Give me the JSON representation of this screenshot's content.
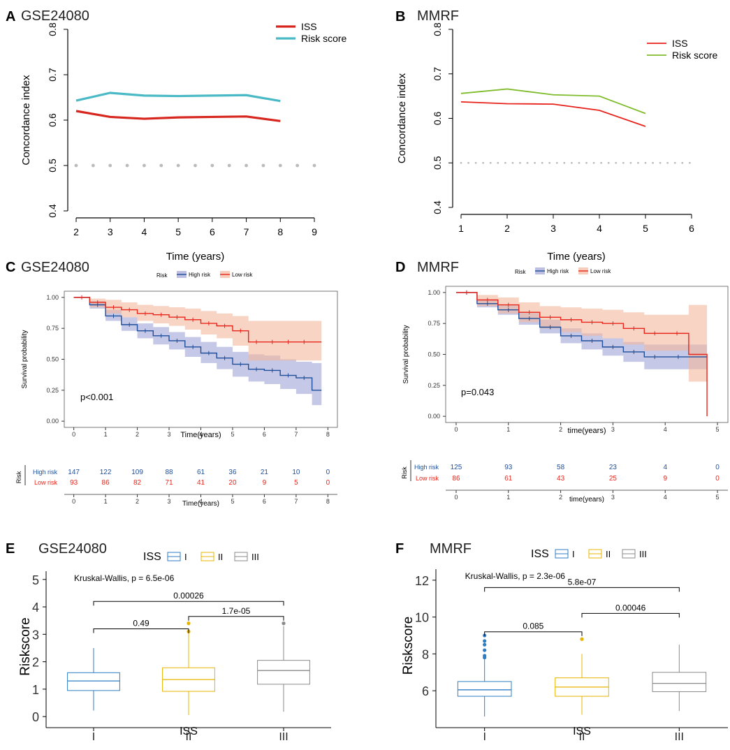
{
  "colors": {
    "iss_a": "#d7261e",
    "risk_a": "#4ab9c6",
    "iss_b": "#e8211b",
    "risk_b": "#7fbc2b",
    "high": "#1f4e9a",
    "low": "#e8261b",
    "high_band": "#9fa3d6",
    "low_band": "#f4b79c",
    "box_I": "#2f7ec4",
    "box_II": "#e8b400",
    "box_III": "#8a8a8a",
    "ref_dots": "#bbbbbb"
  },
  "chart_data": [
    {
      "id": "A",
      "type": "line",
      "panel_letter": "A",
      "title": "GSE24080",
      "xlabel": "Time (years)",
      "ylabel": "Concordance index",
      "x_ticks": [
        2,
        3,
        4,
        5,
        6,
        7,
        8,
        9
      ],
      "y_ticks": [
        0.4,
        0.5,
        0.6,
        0.7,
        0.8
      ],
      "xlim": [
        2,
        9
      ],
      "ylim": [
        0.4,
        0.8
      ],
      "reference": {
        "value": 0.5,
        "x": [
          2,
          2.5,
          3,
          3.5,
          4,
          4.5,
          5,
          5.5,
          6,
          6.5,
          7,
          7.5,
          8,
          8.5,
          9
        ]
      },
      "legend": [
        "ISS",
        "Risk score"
      ],
      "series": [
        {
          "name": "ISS",
          "x": [
            2,
            3,
            4,
            5,
            6,
            7,
            8
          ],
          "values": [
            0.62,
            0.607,
            0.603,
            0.606,
            0.607,
            0.608,
            0.598
          ]
        },
        {
          "name": "Risk score",
          "x": [
            2,
            3,
            4,
            5,
            6,
            7,
            8
          ],
          "values": [
            0.643,
            0.66,
            0.654,
            0.653,
            0.654,
            0.655,
            0.642
          ]
        }
      ]
    },
    {
      "id": "B",
      "type": "line",
      "panel_letter": "B",
      "title": "MMRF",
      "xlabel": "Time (years)",
      "ylabel": "Concordance index",
      "x_ticks": [
        1,
        2,
        3,
        4,
        5,
        6
      ],
      "y_ticks": [
        0.4,
        0.5,
        0.6,
        0.7,
        0.8
      ],
      "xlim": [
        1,
        6
      ],
      "ylim": [
        0.4,
        0.8
      ],
      "reference": {
        "value": 0.5,
        "step": 0.16
      },
      "legend": [
        "ISS",
        "Risk score"
      ],
      "series": [
        {
          "name": "ISS",
          "x": [
            1,
            2,
            3,
            4,
            5
          ],
          "values": [
            0.637,
            0.633,
            0.632,
            0.618,
            0.582
          ]
        },
        {
          "name": "Risk score",
          "x": [
            1,
            2,
            3,
            4,
            5
          ],
          "values": [
            0.656,
            0.666,
            0.653,
            0.65,
            0.611
          ]
        }
      ]
    },
    {
      "id": "C",
      "type": "line",
      "subtype": "kaplan-meier",
      "panel_letter": "C",
      "title": "GSE24080",
      "legend_title": "Risk",
      "legend": [
        "High risk",
        "Low risk"
      ],
      "xlabel": "Time(years)",
      "ylabel": "Survival probability",
      "x_ticks": [
        0,
        1,
        2,
        3,
        4,
        5,
        6,
        7,
        8
      ],
      "y_ticks": [
        0.0,
        0.25,
        0.5,
        0.75,
        1.0
      ],
      "y_tick_labels": [
        "0.00",
        "0.25",
        "0.50",
        "0.75",
        "1.00"
      ],
      "xlim": [
        -0.3,
        8.3
      ],
      "ylim": [
        -0.05,
        1.05
      ],
      "pvalue": "p<0.001",
      "series": [
        {
          "name": "High risk",
          "x": [
            0,
            0.5,
            1,
            1.5,
            2,
            2.5,
            3,
            3.5,
            4,
            4.5,
            5,
            5.5,
            6,
            6.5,
            7,
            7.5,
            7.8
          ],
          "values": [
            1.0,
            0.94,
            0.85,
            0.78,
            0.73,
            0.69,
            0.65,
            0.6,
            0.55,
            0.51,
            0.46,
            0.42,
            0.41,
            0.37,
            0.35,
            0.25,
            0.25
          ],
          "band_lower": [
            1.0,
            0.91,
            0.81,
            0.73,
            0.67,
            0.62,
            0.58,
            0.52,
            0.47,
            0.42,
            0.36,
            0.32,
            0.3,
            0.26,
            0.22,
            0.13,
            0.13
          ],
          "band_upper": [
            1.0,
            0.97,
            0.9,
            0.84,
            0.79,
            0.76,
            0.72,
            0.68,
            0.64,
            0.6,
            0.56,
            0.54,
            0.53,
            0.5,
            0.48,
            0.47,
            0.47
          ]
        },
        {
          "name": "Low risk",
          "x": [
            0,
            0.5,
            1,
            1.5,
            2,
            2.5,
            3,
            3.5,
            4,
            4.5,
            5,
            5.5,
            6,
            6.5,
            7,
            7.5,
            7.8
          ],
          "values": [
            1.0,
            0.96,
            0.92,
            0.9,
            0.87,
            0.86,
            0.84,
            0.82,
            0.79,
            0.77,
            0.73,
            0.64,
            0.64,
            0.64,
            0.64,
            0.64,
            0.64
          ],
          "band_lower": [
            1.0,
            0.92,
            0.87,
            0.84,
            0.81,
            0.79,
            0.77,
            0.74,
            0.7,
            0.67,
            0.61,
            0.49,
            0.49,
            0.49,
            0.49,
            0.49,
            0.49
          ],
          "band_upper": [
            1.0,
            0.99,
            0.98,
            0.96,
            0.94,
            0.93,
            0.92,
            0.91,
            0.89,
            0.87,
            0.85,
            0.81,
            0.81,
            0.81,
            0.81,
            0.81,
            0.81
          ]
        }
      ],
      "risk_table": {
        "title": "Risk",
        "xlabel": "Time(years)",
        "rows": [
          {
            "label": "High risk",
            "counts": [
              "147",
              "122",
              "109",
              "88",
              "61",
              "36",
              "21",
              "10",
              "0"
            ]
          },
          {
            "label": "Low risk",
            "counts": [
              "93",
              "86",
              "82",
              "71",
              "41",
              "20",
              "9",
              "5",
              "0"
            ]
          }
        ]
      }
    },
    {
      "id": "D",
      "type": "line",
      "subtype": "kaplan-meier",
      "panel_letter": "D",
      "title": "MMRF",
      "legend_title": "Risk",
      "legend": [
        "High risk",
        "Low risk"
      ],
      "xlabel": "time(years)",
      "ylabel": "Survival probability",
      "x_ticks": [
        0,
        1,
        2,
        3,
        4,
        5
      ],
      "y_ticks": [
        0.0,
        0.25,
        0.5,
        0.75,
        1.0
      ],
      "y_tick_labels": [
        "0.00",
        "0.25",
        "0.50",
        "0.75",
        "1.00"
      ],
      "xlim": [
        -0.2,
        5.2
      ],
      "ylim": [
        -0.05,
        1.05
      ],
      "pvalue": "p=0.043",
      "series": [
        {
          "name": "High risk",
          "x": [
            0,
            0.4,
            0.8,
            1.2,
            1.6,
            2,
            2.4,
            2.8,
            3.2,
            3.6,
            4,
            4.5,
            4.8
          ],
          "values": [
            1.0,
            0.91,
            0.86,
            0.79,
            0.72,
            0.65,
            0.61,
            0.56,
            0.52,
            0.48,
            0.48,
            0.48,
            0.48
          ],
          "band_lower": [
            1.0,
            0.88,
            0.82,
            0.74,
            0.67,
            0.59,
            0.54,
            0.49,
            0.44,
            0.38,
            0.38,
            0.38,
            0.38
          ],
          "band_upper": [
            1.0,
            0.94,
            0.9,
            0.84,
            0.78,
            0.71,
            0.67,
            0.63,
            0.6,
            0.58,
            0.58,
            0.58,
            0.58
          ]
        },
        {
          "name": "Low risk",
          "x": [
            0,
            0.4,
            0.8,
            1.2,
            1.6,
            2,
            2.4,
            2.8,
            3.2,
            3.6,
            4,
            4.45,
            4.8
          ],
          "values": [
            1.0,
            0.94,
            0.9,
            0.84,
            0.8,
            0.78,
            0.76,
            0.75,
            0.71,
            0.67,
            0.67,
            0.5,
            0.0
          ],
          "band_lower": [
            1.0,
            0.89,
            0.83,
            0.76,
            0.71,
            0.68,
            0.65,
            0.63,
            0.58,
            0.53,
            0.53,
            0.28,
            0.28
          ],
          "band_upper": [
            1.0,
            0.98,
            0.96,
            0.92,
            0.89,
            0.88,
            0.87,
            0.86,
            0.84,
            0.82,
            0.82,
            0.9,
            0.9
          ]
        }
      ],
      "risk_table": {
        "title": "Risk",
        "xlabel": "time(years)",
        "rows": [
          {
            "label": "High risk",
            "counts": [
              "125",
              "93",
              "58",
              "23",
              "4",
              "0"
            ]
          },
          {
            "label": "Low risk",
            "counts": [
              "86",
              "61",
              "43",
              "25",
              "9",
              "0"
            ]
          }
        ]
      }
    },
    {
      "id": "E",
      "type": "box",
      "panel_letter": "E",
      "title": "GSE24080",
      "legend_title": "ISS",
      "legend": [
        "I",
        "II",
        "III"
      ],
      "xlabel": "ISS",
      "ylabel": "Riskscore",
      "categories": [
        "I",
        "II",
        "III"
      ],
      "y_ticks": [
        0,
        1,
        2,
        3,
        4,
        5
      ],
      "ylim": [
        -0.2,
        5.3
      ],
      "test_label": "Kruskal-Wallis, p = 6.5e-06",
      "boxes": [
        {
          "min": 0.22,
          "q1": 0.95,
          "median": 1.3,
          "q3": 1.6,
          "max": 2.5,
          "outliers": []
        },
        {
          "min": 0.05,
          "q1": 0.92,
          "median": 1.35,
          "q3": 1.78,
          "max": 3.1,
          "outliers": [
            3.4,
            3.1
          ]
        },
        {
          "min": 0.18,
          "q1": 1.18,
          "median": 1.68,
          "q3": 2.05,
          "max": 3.3,
          "outliers": [
            3.4
          ]
        }
      ],
      "comparisons": [
        {
          "from": 0,
          "to": 1,
          "y": 3.2,
          "label": "0.49"
        },
        {
          "from": 1,
          "to": 2,
          "y": 3.65,
          "label": "1.7e-05"
        },
        {
          "from": 0,
          "to": 2,
          "y": 4.2,
          "label": "0.00026"
        }
      ]
    },
    {
      "id": "F",
      "type": "box",
      "panel_letter": "F",
      "title": "MMRF",
      "legend_title": "ISS",
      "legend": [
        "I",
        "II",
        "III"
      ],
      "xlabel": "ISS",
      "ylabel": "Riskscore",
      "categories": [
        "I",
        "II",
        "III"
      ],
      "y_ticks": [
        6,
        8,
        10,
        12
      ],
      "ylim": [
        4.3,
        12.6
      ],
      "test_label": "Kruskal-Wallis, p = 2.3e-06",
      "boxes": [
        {
          "min": 4.6,
          "q1": 5.7,
          "median": 6.05,
          "q3": 6.5,
          "max": 7.7,
          "outliers": [
            7.8,
            7.9,
            8.2,
            8.5,
            8.7,
            9.0
          ]
        },
        {
          "min": 4.7,
          "q1": 5.7,
          "median": 6.2,
          "q3": 6.7,
          "max": 8.0,
          "outliers": [
            8.8
          ]
        },
        {
          "min": 4.9,
          "q1": 5.95,
          "median": 6.4,
          "q3": 7.0,
          "max": 8.5,
          "outliers": []
        }
      ],
      "comparisons": [
        {
          "from": 0,
          "to": 1,
          "y": 9.2,
          "label": "0.085"
        },
        {
          "from": 1,
          "to": 2,
          "y": 10.2,
          "label": "0.00046"
        },
        {
          "from": 0,
          "to": 2,
          "y": 11.6,
          "label": "5.8e-07"
        }
      ]
    }
  ]
}
